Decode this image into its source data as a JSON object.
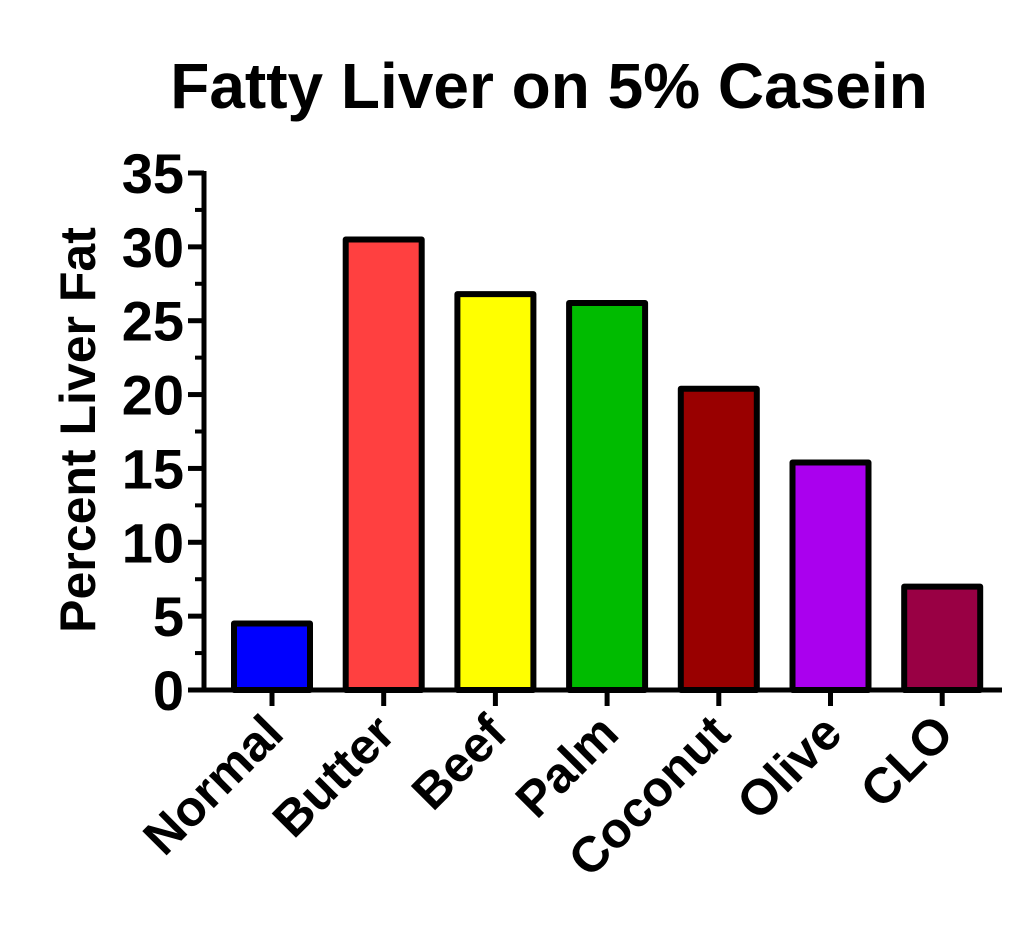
{
  "chart_data": {
    "type": "bar",
    "title": "Fatty Liver on 5% Casein",
    "xlabel": "",
    "ylabel": "Percent Liver Fat",
    "categories": [
      "Normal",
      "Butter",
      "Beef",
      "Palm",
      "Coconut",
      "Olive",
      "CLO"
    ],
    "values": [
      4.5,
      30.5,
      26.8,
      26.2,
      20.4,
      15.4,
      7.0
    ],
    "colors": [
      "#0000ff",
      "#ff4040",
      "#ffff00",
      "#00bb00",
      "#990000",
      "#aa00ee",
      "#990044"
    ],
    "ylim": [
      0,
      35
    ],
    "yticks": [
      0,
      5,
      10,
      15,
      20,
      25,
      30,
      35
    ],
    "ytick_labels": [
      "0",
      "5",
      "10",
      "15",
      "20",
      "25",
      "30",
      "35"
    ],
    "grid": false,
    "legend": "none"
  }
}
